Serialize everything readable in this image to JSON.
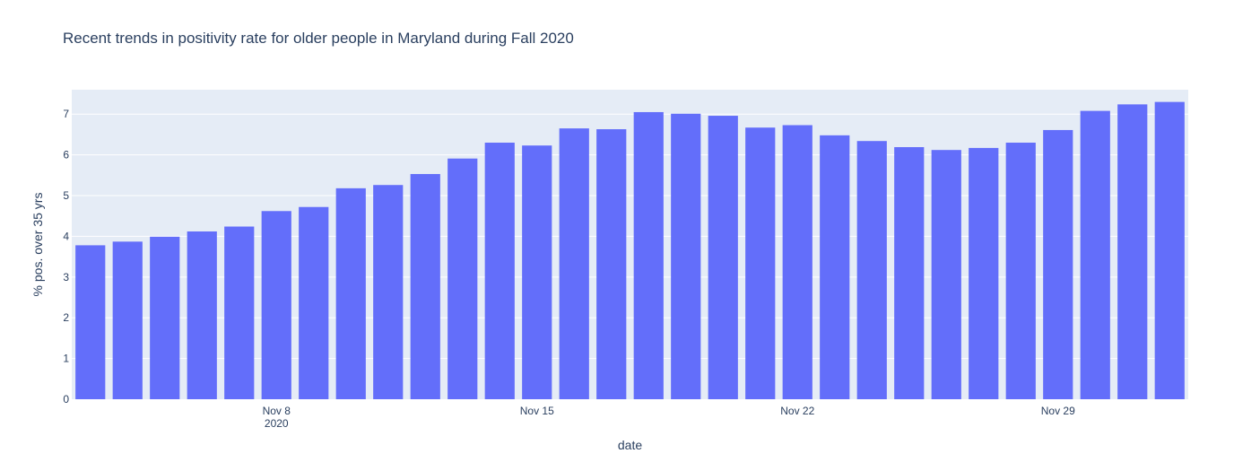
{
  "chart_data": {
    "type": "bar",
    "title": "Recent trends in positivity rate for older people in Maryland during Fall 2020",
    "xlabel": "date",
    "ylabel": "% pos. over 35 yrs",
    "x": [
      "2020-11-03",
      "2020-11-04",
      "2020-11-05",
      "2020-11-06",
      "2020-11-07",
      "2020-11-08",
      "2020-11-09",
      "2020-11-10",
      "2020-11-11",
      "2020-11-12",
      "2020-11-13",
      "2020-11-14",
      "2020-11-15",
      "2020-11-16",
      "2020-11-17",
      "2020-11-18",
      "2020-11-19",
      "2020-11-20",
      "2020-11-21",
      "2020-11-22",
      "2020-11-23",
      "2020-11-24",
      "2020-11-25",
      "2020-11-26",
      "2020-11-27",
      "2020-11-28",
      "2020-11-29",
      "2020-11-30",
      "2020-12-01",
      "2020-12-02"
    ],
    "values": [
      3.78,
      3.87,
      3.99,
      4.12,
      4.24,
      4.62,
      4.72,
      5.18,
      5.26,
      5.53,
      5.91,
      6.3,
      6.23,
      6.65,
      6.63,
      7.05,
      7.01,
      6.96,
      6.67,
      6.73,
      6.48,
      6.34,
      6.19,
      6.12,
      6.17,
      6.3,
      6.61,
      7.08,
      7.24,
      7.3
    ],
    "ylim": [
      0,
      7.6
    ],
    "y_ticks": [
      0,
      1,
      2,
      3,
      4,
      5,
      6,
      7
    ],
    "x_ticks": [
      {
        "date": "2020-11-08",
        "label": "Nov 8",
        "sublabel": "2020"
      },
      {
        "date": "2020-11-15",
        "label": "Nov 15",
        "sublabel": ""
      },
      {
        "date": "2020-11-22",
        "label": "Nov 22",
        "sublabel": ""
      },
      {
        "date": "2020-11-29",
        "label": "Nov 29",
        "sublabel": ""
      }
    ],
    "grid": true,
    "legend": "none",
    "colors": {
      "bar": "#636efa",
      "plot_bg": "#e5ecf6",
      "grid": "#ffffff",
      "text": "#2a3f5f"
    }
  }
}
